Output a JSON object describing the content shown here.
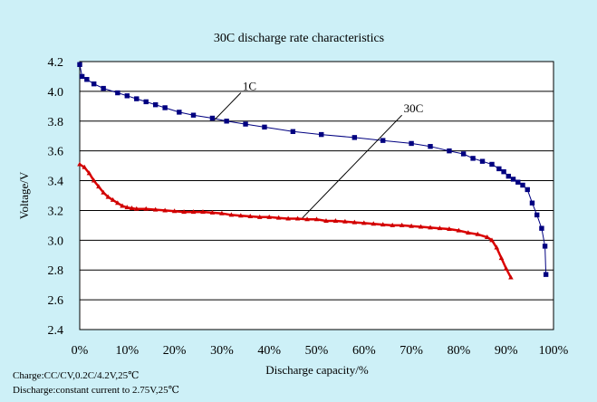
{
  "chart_data": {
    "type": "line",
    "title": "30C discharge rate characteristics",
    "xlabel": "Discharge capacity/%",
    "ylabel": "Voltage/V",
    "xlim": [
      0,
      100
    ],
    "ylim": [
      2.4,
      4.2
    ],
    "x_ticks": [
      "0%",
      "10%",
      "20%",
      "30%",
      "40%",
      "50%",
      "60%",
      "70%",
      "80%",
      "90%",
      "100%"
    ],
    "y_ticks": [
      "2.4",
      "2.6",
      "2.8",
      "3.0",
      "3.2",
      "3.4",
      "3.6",
      "3.8",
      "4.0",
      "4.2"
    ],
    "grid": "horizontal",
    "notes": [
      "Charge:CC/CV,0.2C/4.2V,25℃",
      "Discharge:constant current to 2.75V,25℃"
    ],
    "annotations": [
      {
        "text": "1C",
        "series": "1C",
        "pointer_from": [
          34,
          3.99
        ],
        "pointer_to": [
          28.5,
          3.81
        ]
      },
      {
        "text": "30C",
        "series": "30C",
        "pointer_from": [
          68,
          3.84
        ],
        "pointer_to": [
          47,
          3.15
        ]
      }
    ],
    "series": [
      {
        "name": "1C",
        "color": "#000080",
        "line_color": "#000080",
        "marker": "square",
        "x": [
          0,
          0.5,
          1.5,
          3,
          5,
          8,
          10,
          12,
          14,
          16,
          18,
          21,
          24,
          28,
          31,
          35,
          39,
          45,
          51,
          58,
          64,
          70,
          74,
          78,
          81,
          83,
          85,
          87,
          88.5,
          89.5,
          90.5,
          91.5,
          92.5,
          93.5,
          94.5,
          95.5,
          96.5,
          97.5,
          98.2,
          98.4
        ],
        "y": [
          4.18,
          4.1,
          4.08,
          4.05,
          4.02,
          3.99,
          3.97,
          3.95,
          3.93,
          3.91,
          3.89,
          3.86,
          3.84,
          3.82,
          3.8,
          3.78,
          3.76,
          3.73,
          3.71,
          3.69,
          3.67,
          3.65,
          3.63,
          3.6,
          3.58,
          3.55,
          3.53,
          3.51,
          3.48,
          3.46,
          3.43,
          3.41,
          3.39,
          3.37,
          3.34,
          3.25,
          3.17,
          3.08,
          2.96,
          2.77
        ]
      },
      {
        "name": "30C",
        "color": "#cc0000",
        "line_color": "#dd0000",
        "marker": "triangle",
        "x": [
          0,
          1,
          2,
          3,
          4,
          5,
          6,
          7,
          8,
          9,
          10,
          11,
          12,
          14,
          16,
          18,
          20,
          22,
          24,
          26,
          28,
          30,
          32,
          34,
          36,
          38,
          40,
          42,
          44,
          46,
          48,
          50,
          52,
          54,
          56,
          58,
          60,
          62,
          64,
          66,
          68,
          70,
          72,
          74,
          76,
          78,
          80,
          82,
          84,
          86,
          87,
          88,
          89,
          90,
          91
        ],
        "y": [
          3.51,
          3.49,
          3.45,
          3.4,
          3.36,
          3.32,
          3.29,
          3.27,
          3.25,
          3.23,
          3.22,
          3.215,
          3.21,
          3.21,
          3.205,
          3.2,
          3.195,
          3.19,
          3.19,
          3.19,
          3.185,
          3.18,
          3.17,
          3.165,
          3.16,
          3.155,
          3.155,
          3.15,
          3.145,
          3.145,
          3.14,
          3.14,
          3.13,
          3.13,
          3.125,
          3.12,
          3.115,
          3.11,
          3.105,
          3.1,
          3.1,
          3.095,
          3.09,
          3.085,
          3.08,
          3.075,
          3.065,
          3.05,
          3.04,
          3.02,
          3.0,
          2.95,
          2.88,
          2.81,
          2.75
        ]
      }
    ]
  }
}
